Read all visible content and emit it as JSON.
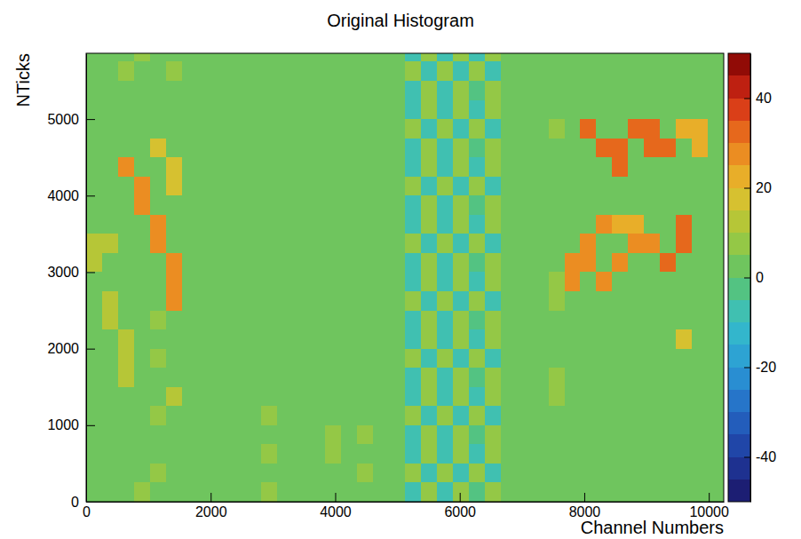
{
  "chart_data": {
    "type": "heatmap",
    "title": "Original Histogram",
    "x_label": "Channel Numbers",
    "y_label": "NTicks",
    "xlim": [
      0,
      10240
    ],
    "ylim": [
      0,
      5860
    ],
    "xticks": [
      0,
      2000,
      4000,
      6000,
      8000,
      10000
    ],
    "yticks": [
      0,
      1000,
      2000,
      3000,
      4000,
      5000
    ],
    "zlim": [
      -50,
      50
    ],
    "zticks": [
      -40,
      -20,
      0,
      20,
      40
    ],
    "xbins": [
      0,
      256,
      512,
      768,
      1024,
      1280,
      1536,
      1792,
      2048,
      2304,
      2560,
      2816,
      3072,
      3328,
      3584,
      3840,
      4096,
      4352,
      4608,
      4864,
      5120,
      5376,
      5632,
      5888,
      6144,
      6400,
      6656,
      6912,
      7168,
      7424,
      7680,
      7936,
      8192,
      8448,
      8704,
      8960,
      9216,
      9472,
      9728,
      9984,
      10240
    ],
    "ybins": [
      0,
      250,
      500,
      750,
      1000,
      1250,
      1500,
      1750,
      2000,
      2250,
      2500,
      2750,
      3000,
      3250,
      3500,
      3750,
      4000,
      4250,
      4500,
      4750,
      5000,
      5250,
      5500,
      5750,
      5860
    ],
    "cells": [
      [
        3,
        2,
        3,
        6,
        2,
        3,
        2,
        3,
        2,
        2,
        3,
        5,
        2,
        3,
        2,
        2,
        3,
        2,
        2,
        3,
        -6,
        8,
        -9,
        7,
        -5,
        9,
        3,
        2,
        2,
        3,
        2,
        2,
        3,
        2,
        3,
        2,
        2,
        3,
        2,
        3
      ],
      [
        2,
        3,
        2,
        3,
        6,
        2,
        3,
        2,
        3,
        3,
        2,
        3,
        3,
        2,
        3,
        3,
        2,
        5,
        3,
        2,
        7,
        -8,
        6,
        -10,
        8,
        -6,
        2,
        3,
        3,
        2,
        3,
        3,
        2,
        3,
        2,
        3,
        3,
        2,
        3,
        2
      ],
      [
        3,
        2,
        3,
        2,
        2,
        3,
        2,
        3,
        2,
        2,
        3,
        6,
        2,
        3,
        2,
        5,
        3,
        2,
        2,
        3,
        -9,
        6,
        -7,
        9,
        -8,
        5,
        3,
        2,
        2,
        3,
        2,
        2,
        3,
        2,
        3,
        2,
        2,
        3,
        2,
        3
      ],
      [
        2,
        3,
        2,
        3,
        3,
        2,
        3,
        2,
        3,
        3,
        2,
        3,
        3,
        2,
        3,
        6,
        2,
        6,
        3,
        2,
        -6,
        8,
        -9,
        7,
        -5,
        9,
        2,
        3,
        3,
        2,
        3,
        3,
        2,
        3,
        2,
        3,
        3,
        2,
        3,
        2
      ],
      [
        3,
        2,
        3,
        2,
        8,
        3,
        2,
        3,
        2,
        2,
        3,
        5,
        2,
        3,
        2,
        2,
        3,
        2,
        2,
        3,
        7,
        -8,
        6,
        -10,
        8,
        -6,
        3,
        2,
        2,
        3,
        2,
        2,
        3,
        2,
        3,
        2,
        2,
        3,
        2,
        3
      ],
      [
        2,
        3,
        2,
        3,
        3,
        10,
        3,
        2,
        3,
        3,
        2,
        3,
        3,
        2,
        3,
        3,
        2,
        3,
        3,
        2,
        -9,
        6,
        -7,
        9,
        -8,
        5,
        2,
        3,
        3,
        8,
        3,
        3,
        2,
        3,
        2,
        3,
        3,
        2,
        3,
        2
      ],
      [
        3,
        2,
        12,
        2,
        2,
        3,
        2,
        3,
        2,
        2,
        3,
        2,
        2,
        3,
        2,
        2,
        3,
        2,
        2,
        3,
        -6,
        8,
        -9,
        7,
        -5,
        9,
        3,
        2,
        2,
        6,
        2,
        2,
        3,
        2,
        3,
        2,
        2,
        3,
        2,
        3
      ],
      [
        2,
        3,
        12,
        3,
        6,
        2,
        3,
        2,
        3,
        3,
        2,
        3,
        3,
        2,
        3,
        3,
        2,
        3,
        3,
        2,
        7,
        -8,
        6,
        -10,
        8,
        -6,
        2,
        3,
        3,
        2,
        3,
        3,
        2,
        3,
        2,
        3,
        3,
        2,
        3,
        2
      ],
      [
        3,
        2,
        12,
        2,
        2,
        3,
        2,
        3,
        2,
        2,
        3,
        2,
        2,
        3,
        2,
        2,
        3,
        2,
        2,
        3,
        -9,
        6,
        -7,
        9,
        -8,
        5,
        3,
        2,
        2,
        3,
        2,
        2,
        3,
        2,
        3,
        2,
        2,
        15,
        2,
        3
      ],
      [
        2,
        12,
        2,
        3,
        6,
        2,
        3,
        2,
        3,
        3,
        2,
        3,
        3,
        2,
        3,
        3,
        2,
        3,
        3,
        2,
        -6,
        8,
        -9,
        7,
        -5,
        9,
        2,
        3,
        3,
        2,
        3,
        3,
        2,
        3,
        2,
        3,
        3,
        2,
        3,
        2
      ],
      [
        3,
        12,
        3,
        2,
        2,
        25,
        2,
        3,
        2,
        2,
        3,
        2,
        2,
        3,
        2,
        2,
        3,
        2,
        2,
        3,
        7,
        -8,
        6,
        -10,
        8,
        -6,
        3,
        2,
        2,
        8,
        2,
        2,
        3,
        2,
        3,
        2,
        2,
        3,
        2,
        3
      ],
      [
        2,
        3,
        2,
        3,
        3,
        25,
        3,
        2,
        3,
        3,
        2,
        3,
        3,
        2,
        3,
        3,
        2,
        3,
        3,
        2,
        -9,
        6,
        -7,
        9,
        -8,
        5,
        2,
        3,
        3,
        8,
        25,
        3,
        25,
        3,
        2,
        3,
        3,
        2,
        3,
        2
      ],
      [
        12,
        2,
        3,
        2,
        2,
        25,
        2,
        3,
        2,
        2,
        3,
        2,
        2,
        3,
        2,
        2,
        3,
        2,
        2,
        3,
        -6,
        8,
        -9,
        7,
        -5,
        9,
        3,
        2,
        2,
        3,
        25,
        25,
        3,
        25,
        3,
        2,
        30,
        3,
        2,
        3
      ],
      [
        10,
        10,
        2,
        3,
        25,
        2,
        3,
        2,
        3,
        3,
        2,
        3,
        3,
        2,
        3,
        3,
        2,
        3,
        3,
        2,
        7,
        -8,
        6,
        -10,
        8,
        -6,
        2,
        3,
        3,
        2,
        3,
        25,
        2,
        3,
        25,
        25,
        3,
        30,
        3,
        2
      ],
      [
        3,
        2,
        3,
        2,
        25,
        3,
        2,
        3,
        2,
        2,
        3,
        2,
        2,
        3,
        2,
        2,
        3,
        2,
        2,
        3,
        -9,
        6,
        -7,
        9,
        -8,
        5,
        3,
        2,
        2,
        3,
        2,
        2,
        25,
        20,
        20,
        2,
        2,
        30,
        2,
        3
      ],
      [
        2,
        3,
        2,
        25,
        3,
        2,
        3,
        2,
        3,
        3,
        2,
        3,
        3,
        2,
        3,
        3,
        2,
        3,
        3,
        2,
        -6,
        8,
        -9,
        7,
        -5,
        9,
        2,
        3,
        3,
        2,
        3,
        3,
        2,
        3,
        2,
        3,
        3,
        2,
        3,
        2
      ],
      [
        3,
        2,
        3,
        25,
        2,
        15,
        2,
        3,
        2,
        2,
        3,
        2,
        2,
        3,
        2,
        2,
        3,
        2,
        2,
        3,
        7,
        -8,
        6,
        -10,
        8,
        -6,
        3,
        2,
        2,
        3,
        2,
        2,
        3,
        2,
        3,
        2,
        2,
        3,
        2,
        3
      ],
      [
        2,
        3,
        25,
        3,
        3,
        15,
        3,
        2,
        3,
        3,
        2,
        3,
        3,
        2,
        3,
        3,
        2,
        3,
        3,
        2,
        -9,
        6,
        -7,
        9,
        -8,
        5,
        2,
        3,
        3,
        2,
        3,
        3,
        2,
        30,
        2,
        3,
        3,
        2,
        3,
        2
      ],
      [
        3,
        2,
        3,
        2,
        15,
        3,
        2,
        3,
        2,
        2,
        3,
        2,
        2,
        3,
        2,
        2,
        3,
        2,
        2,
        3,
        -6,
        8,
        -9,
        7,
        -5,
        9,
        3,
        2,
        2,
        3,
        2,
        2,
        30,
        30,
        3,
        30,
        30,
        3,
        20,
        3
      ],
      [
        2,
        3,
        2,
        3,
        3,
        2,
        3,
        2,
        3,
        3,
        2,
        3,
        3,
        2,
        3,
        3,
        2,
        3,
        3,
        2,
        7,
        -8,
        6,
        -10,
        8,
        -6,
        2,
        3,
        3,
        8,
        3,
        30,
        2,
        3,
        30,
        30,
        3,
        20,
        20,
        2
      ],
      [
        3,
        2,
        3,
        2,
        2,
        3,
        2,
        3,
        2,
        2,
        3,
        2,
        2,
        3,
        2,
        2,
        3,
        2,
        2,
        3,
        -9,
        6,
        -7,
        9,
        -8,
        5,
        3,
        2,
        2,
        3,
        2,
        2,
        3,
        2,
        3,
        2,
        2,
        3,
        2,
        3
      ],
      [
        2,
        3,
        2,
        3,
        3,
        2,
        3,
        2,
        3,
        3,
        2,
        3,
        3,
        2,
        3,
        3,
        2,
        3,
        3,
        2,
        -6,
        8,
        -9,
        7,
        -5,
        9,
        2,
        3,
        3,
        2,
        3,
        3,
        2,
        3,
        2,
        3,
        3,
        2,
        3,
        2
      ],
      [
        3,
        2,
        6,
        2,
        2,
        5,
        2,
        3,
        2,
        2,
        3,
        2,
        2,
        3,
        2,
        2,
        3,
        2,
        2,
        3,
        7,
        -8,
        6,
        -10,
        8,
        -6,
        3,
        2,
        2,
        3,
        2,
        2,
        3,
        2,
        3,
        2,
        2,
        3,
        2,
        3
      ],
      [
        2,
        3,
        2,
        6,
        3,
        2,
        3,
        2,
        3,
        3,
        2,
        3,
        3,
        2,
        3,
        3,
        2,
        3,
        3,
        2,
        -9,
        6,
        -7,
        9,
        -8,
        5,
        2,
        3,
        3,
        2,
        3,
        3,
        2,
        3,
        2,
        3,
        3,
        2,
        3,
        2
      ]
    ]
  }
}
